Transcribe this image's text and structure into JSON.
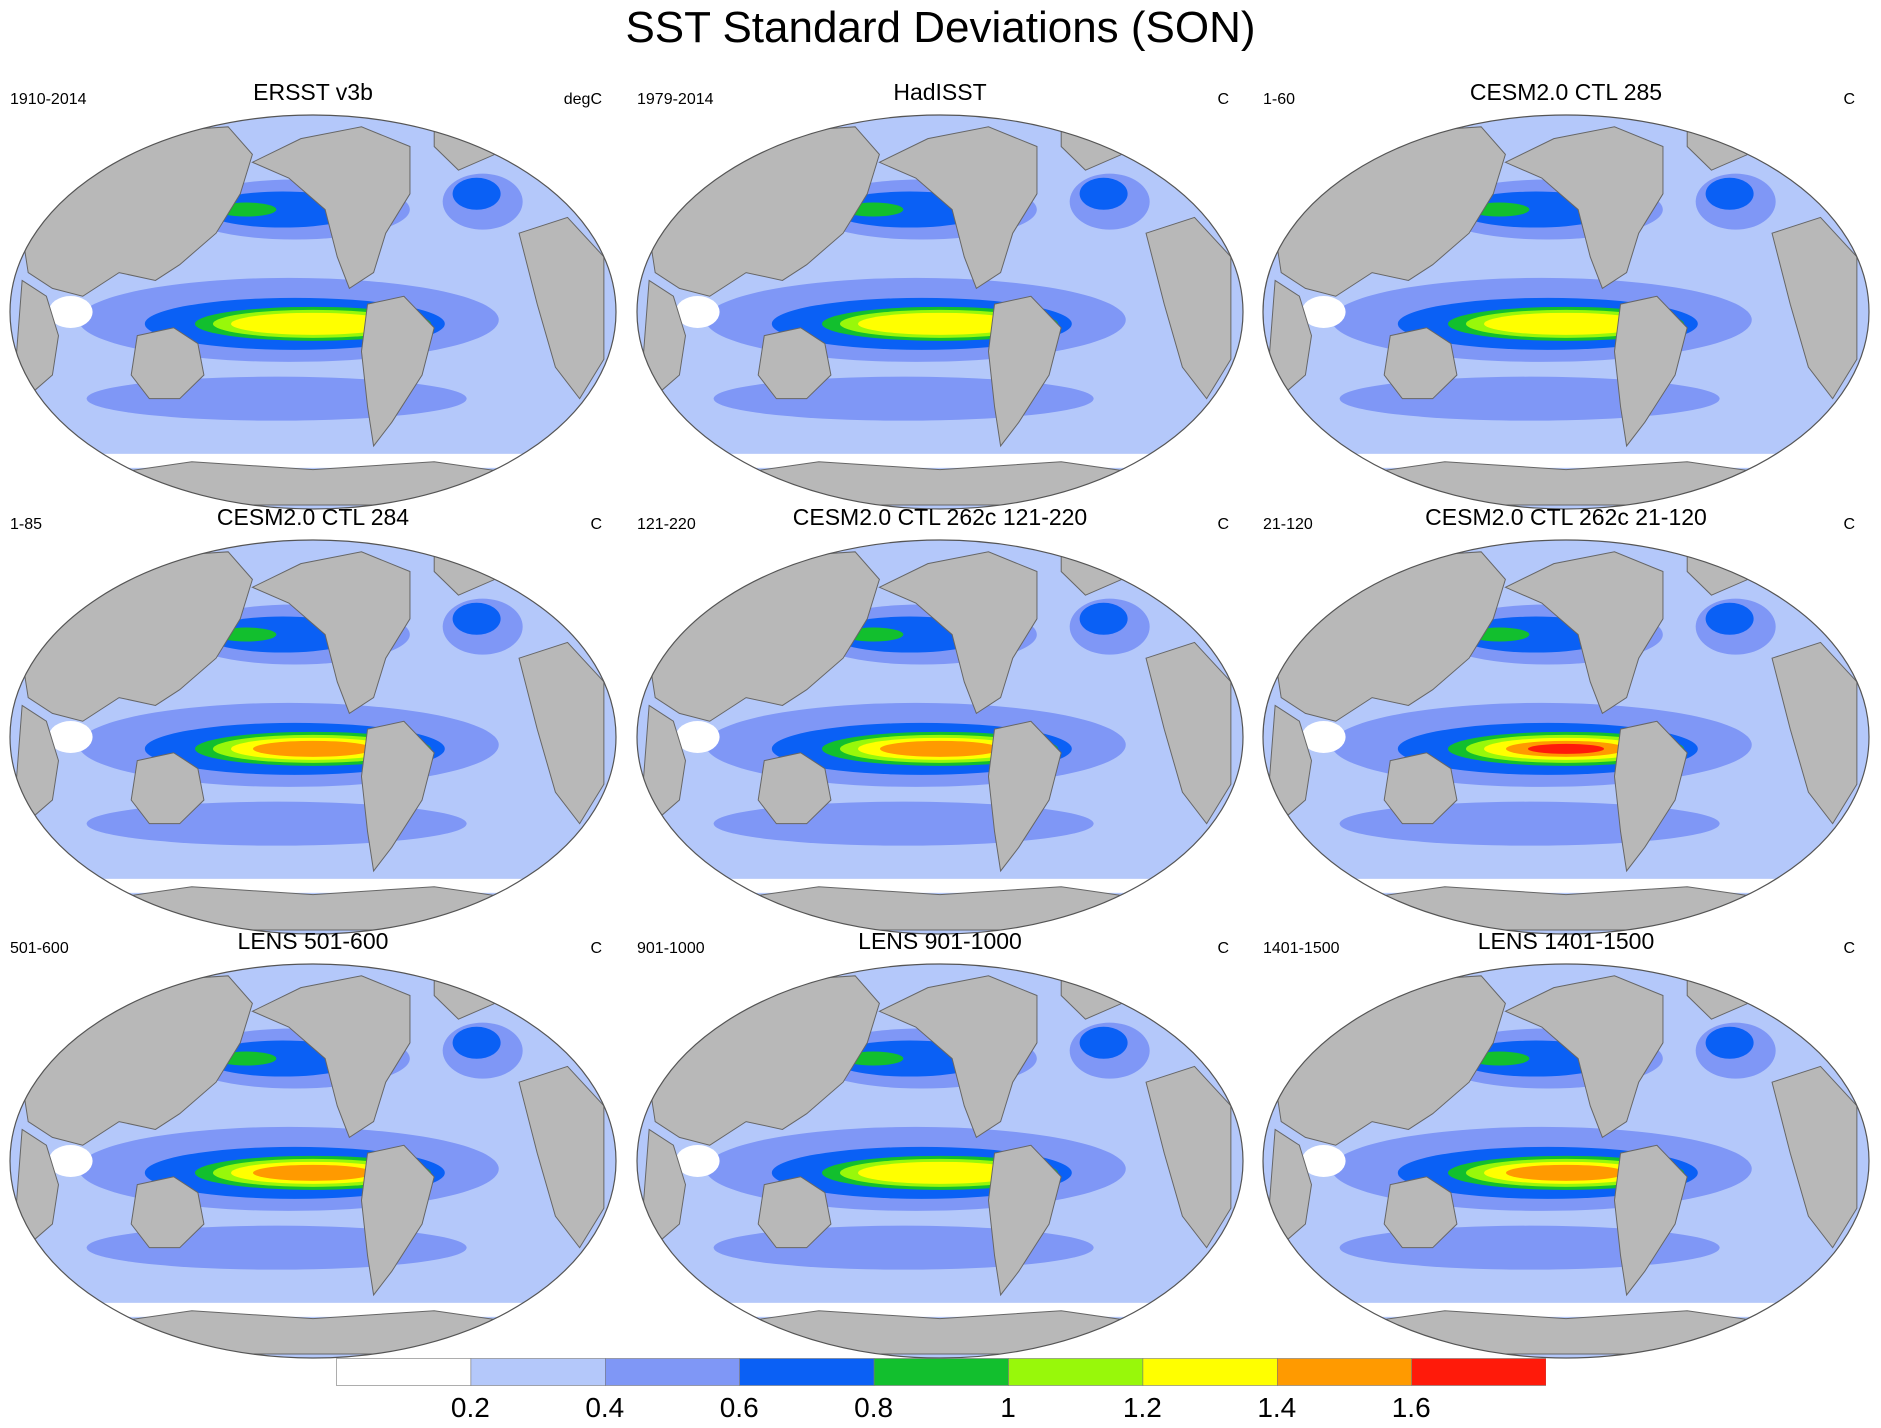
{
  "title": "SST Standard Deviations (SON)",
  "panels": [
    {
      "title": "ERSST v3b",
      "years": "1910-2014",
      "units": "degC"
    },
    {
      "title": "HadISST",
      "years": "1979-2014",
      "units": "C"
    },
    {
      "title": "CESM2.0 CTL 285",
      "years": "1-60",
      "units": "C"
    },
    {
      "title": "CESM2.0 CTL 284",
      "years": "1-85",
      "units": "C"
    },
    {
      "title": "CESM2.0 CTL 262c 121-220",
      "years": "121-220",
      "units": "C"
    },
    {
      "title": "CESM2.0 CTL 262c 21-120",
      "years": "21-120",
      "units": "C"
    },
    {
      "title": "LENS 501-600",
      "years": "501-600",
      "units": "C"
    },
    {
      "title": "LENS 901-1000",
      "years": "901-1000",
      "units": "C"
    },
    {
      "title": "LENS 1401-1500",
      "years": "1401-1500",
      "units": "C"
    }
  ],
  "colorbar": {
    "labels": [
      "0.2",
      "0.4",
      "0.6",
      "0.8",
      "1",
      "1.2",
      "1.4",
      "1.6"
    ],
    "colors": [
      "#ffffff",
      "#b4c8fa",
      "#7f97f6",
      "#0a60f5",
      "#12bf2e",
      "#98f80a",
      "#ffff00",
      "#ff9a00",
      "#ff1a0a"
    ]
  },
  "colors": {
    "land": "#b8b8b8",
    "ocean_base": "#b4c8fa",
    "outline": "#555555"
  }
}
